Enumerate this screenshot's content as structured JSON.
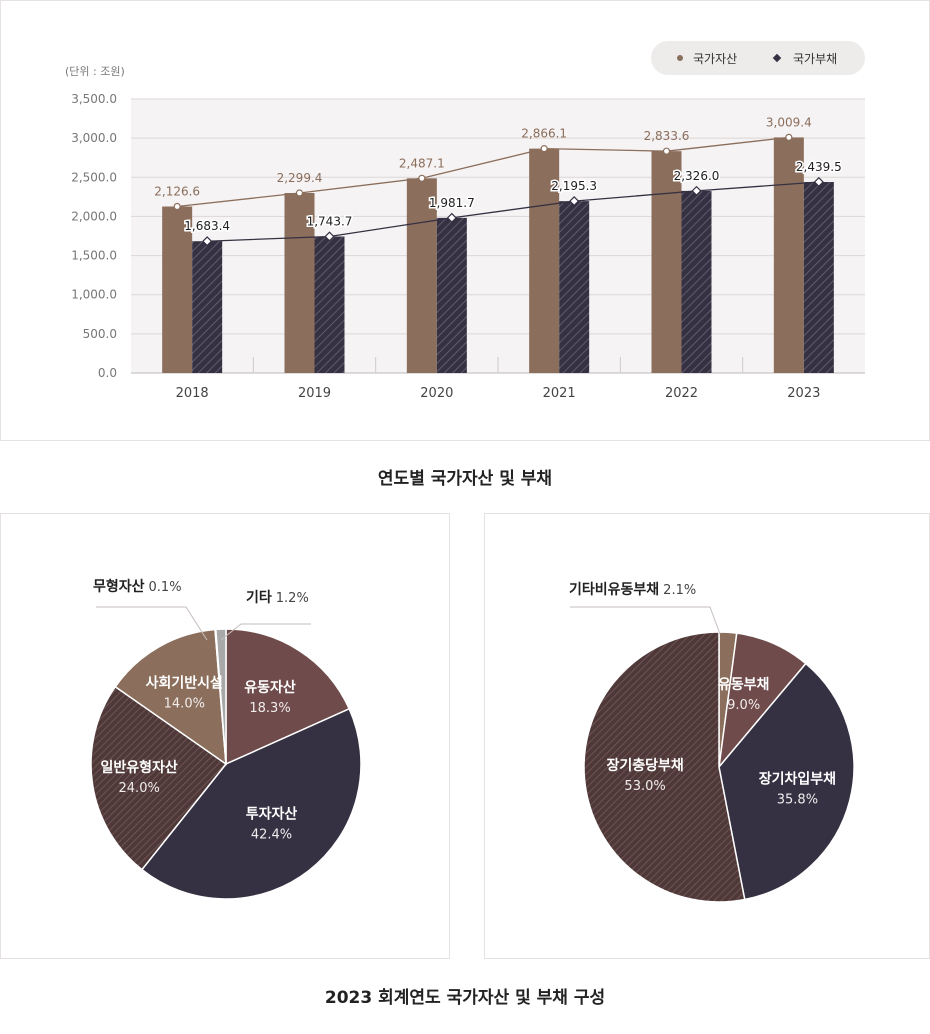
{
  "bar_chart": {
    "unit_label": "(단위 : 조원)",
    "caption": "연도별 국가자산 및 부채"
  },
  "pie_section": {
    "caption": "2023 회계연도 국가자산 및 부채 구성"
  },
  "chart_data": [
    {
      "type": "bar",
      "title": "연도별 국가자산 및 부채",
      "ylabel": "(단위 : 조원)",
      "categories": [
        "2018",
        "2019",
        "2020",
        "2021",
        "2022",
        "2023"
      ],
      "series": [
        {
          "name": "국가자산",
          "values": [
            2126.6,
            2299.4,
            2487.1,
            2866.1,
            2833.6,
            3009.4
          ],
          "color": "#8b6e5c"
        },
        {
          "name": "국가부채",
          "values": [
            1683.4,
            1743.7,
            1981.7,
            2195.3,
            2326.0,
            2439.5
          ],
          "color": "#353142"
        }
      ],
      "value_labels": {
        "국가자산": [
          "2,126.6",
          "2,299.4",
          "2,487.1",
          "2,866.1",
          "2,833.6",
          "3,009.4"
        ],
        "국가부채": [
          "1,683.4",
          "1,743.7",
          "1,981.7",
          "2,195.3",
          "2,326.0",
          "2,439.5"
        ]
      },
      "ylim": [
        0,
        3500
      ],
      "yticks": [
        "0.0",
        "500.0",
        "1,000.0",
        "1,500.0",
        "2,000.0",
        "2,500.0",
        "3,000.0",
        "3,500.0"
      ],
      "ytick_values": [
        0,
        500,
        1000,
        1500,
        2000,
        2500,
        3000,
        3500
      ],
      "grid": true,
      "legend_position": "top-right",
      "overlay": "line with markers over each series"
    },
    {
      "type": "pie",
      "slices": [
        {
          "label": "유동자산",
          "value": 18.3,
          "display": "18.3%",
          "color": "#704b4b",
          "hatch": false
        },
        {
          "label": "투자자산",
          "value": 42.4,
          "display": "42.4%",
          "color": "#353142",
          "hatch": false
        },
        {
          "label": "일반유형자산",
          "value": 24.0,
          "display": "24.0%",
          "color": "#5a3f3f",
          "hatch": true
        },
        {
          "label": "사회기반시설",
          "value": 14.0,
          "display": "14.0%",
          "color": "#8b6e5c",
          "hatch": false
        },
        {
          "label": "무형자산",
          "value": 0.1,
          "display": "0.1%",
          "color": "#353142",
          "hatch": false
        },
        {
          "label": "기타",
          "value": 1.2,
          "display": "1.2%",
          "color": "#a8a8a8",
          "hatch": false
        }
      ]
    },
    {
      "type": "pie",
      "slices": [
        {
          "label": "기타비유동부채",
          "value": 2.1,
          "display": "2.1%",
          "color": "#8b6e5c",
          "hatch": false
        },
        {
          "label": "유동부채",
          "value": 9.0,
          "display": "9.0%",
          "color": "#704b4b",
          "hatch": false
        },
        {
          "label": "장기차입부채",
          "value": 35.8,
          "display": "35.8%",
          "color": "#353142",
          "hatch": false
        },
        {
          "label": "장기충당부채",
          "value": 53.0,
          "display": "53.0%",
          "color": "#5a3f3f",
          "hatch": true
        }
      ]
    }
  ]
}
